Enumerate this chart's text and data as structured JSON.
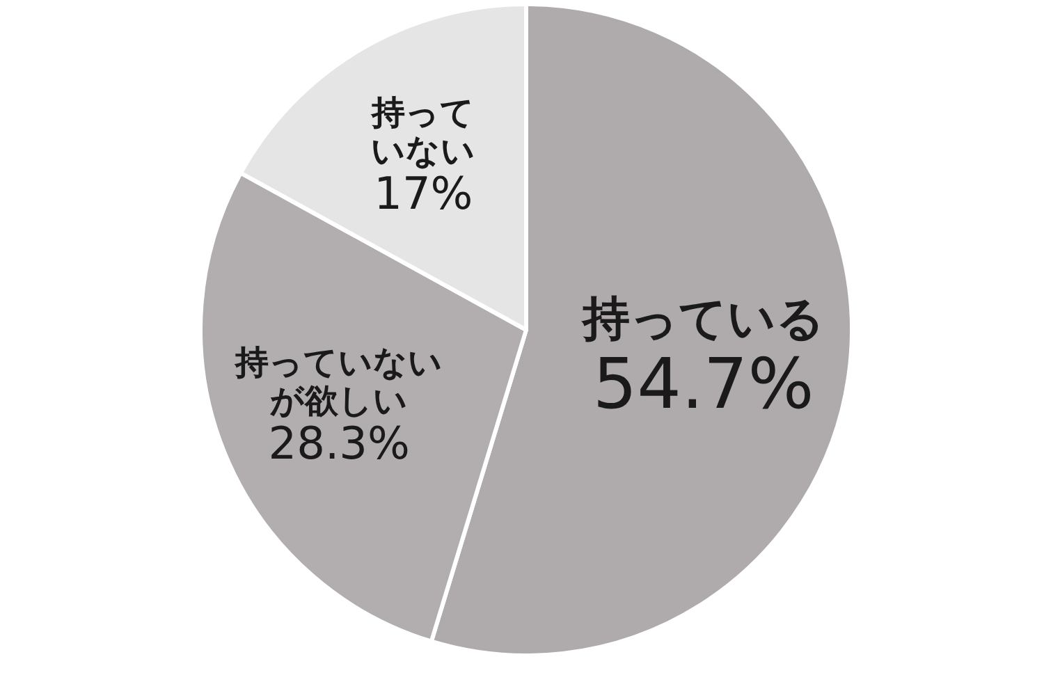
{
  "chart_data": {
    "type": "pie",
    "categories": [
      "持っている",
      "持っていないが欲しい",
      "持っていない"
    ],
    "values": [
      54.7,
      28.3,
      17
    ],
    "value_labels": [
      "54.7%",
      "28.3%",
      "17%"
    ],
    "colors": [
      "#afabac",
      "#b2aeaf",
      "#e6e5e5"
    ]
  }
}
